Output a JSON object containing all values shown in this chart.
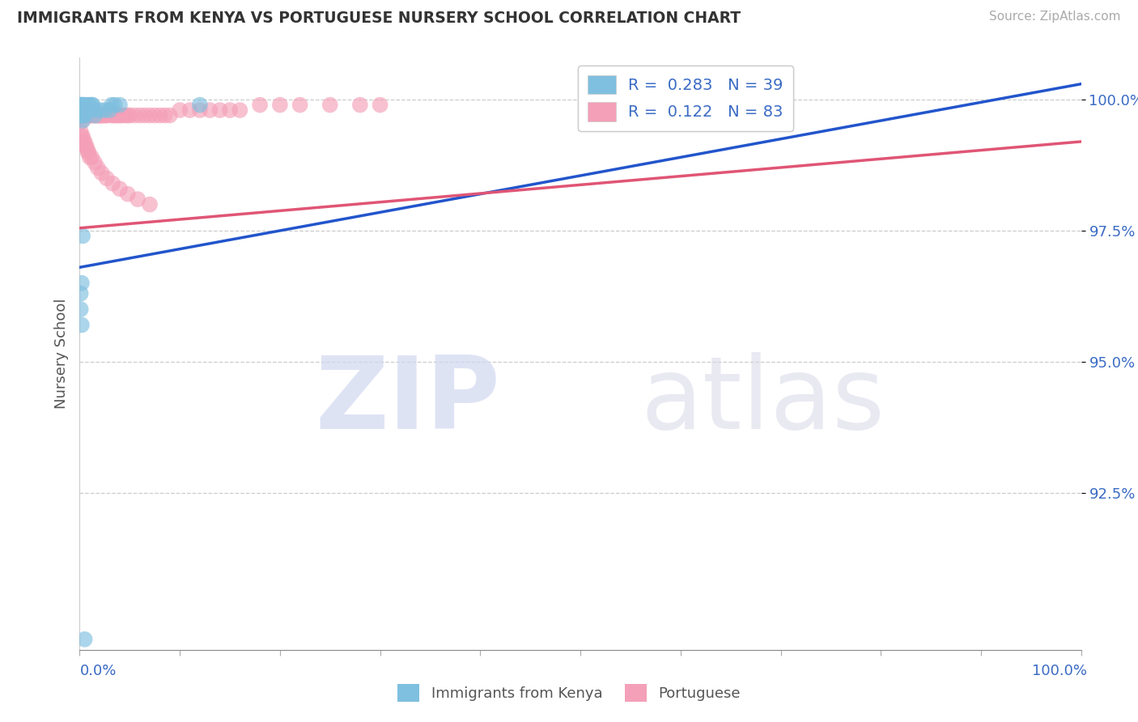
{
  "title": "IMMIGRANTS FROM KENYA VS PORTUGUESE NURSERY SCHOOL CORRELATION CHART",
  "source": "Source: ZipAtlas.com",
  "ylabel": "Nursery School",
  "ytick_labels": [
    "100.0%",
    "97.5%",
    "95.0%",
    "92.5%"
  ],
  "ytick_values": [
    1.0,
    0.975,
    0.95,
    0.925
  ],
  "xrange": [
    0.0,
    1.0
  ],
  "yrange": [
    0.895,
    1.008
  ],
  "blue_color": "#7fbfdf",
  "pink_color": "#f4a0b8",
  "blue_line_color": "#2255cc",
  "pink_line_color": "#e05575",
  "legend_blue_label": "R =  0.283   N = 39",
  "legend_pink_label": "R =  0.122   N = 83",
  "bottom_legend_blue": "Immigrants from Kenya",
  "bottom_legend_pink": "Portuguese",
  "blue_scatter_x": [
    0.0,
    0.001,
    0.001,
    0.001,
    0.002,
    0.002,
    0.002,
    0.003,
    0.003,
    0.003,
    0.003,
    0.004,
    0.004,
    0.005,
    0.005,
    0.005,
    0.006,
    0.007,
    0.008,
    0.008,
    0.009,
    0.01,
    0.012,
    0.013,
    0.015,
    0.015,
    0.02,
    0.025,
    0.03,
    0.032,
    0.035,
    0.04,
    0.003,
    0.002,
    0.001,
    0.001,
    0.002,
    0.12,
    0.005
  ],
  "blue_scatter_y": [
    0.999,
    0.999,
    0.998,
    0.997,
    0.999,
    0.998,
    0.997,
    0.999,
    0.998,
    0.997,
    0.996,
    0.999,
    0.998,
    0.999,
    0.998,
    0.997,
    0.998,
    0.998,
    0.999,
    0.998,
    0.998,
    0.999,
    0.999,
    0.999,
    0.998,
    0.997,
    0.998,
    0.998,
    0.998,
    0.999,
    0.999,
    0.999,
    0.974,
    0.965,
    0.963,
    0.96,
    0.957,
    0.999,
    0.897
  ],
  "pink_scatter_x": [
    0.0,
    0.001,
    0.001,
    0.002,
    0.002,
    0.003,
    0.003,
    0.004,
    0.005,
    0.005,
    0.006,
    0.007,
    0.008,
    0.008,
    0.009,
    0.01,
    0.01,
    0.011,
    0.012,
    0.013,
    0.015,
    0.016,
    0.017,
    0.018,
    0.019,
    0.02,
    0.021,
    0.022,
    0.023,
    0.025,
    0.026,
    0.028,
    0.03,
    0.032,
    0.034,
    0.036,
    0.038,
    0.04,
    0.042,
    0.045,
    0.048,
    0.05,
    0.055,
    0.06,
    0.065,
    0.07,
    0.075,
    0.08,
    0.085,
    0.09,
    0.1,
    0.11,
    0.12,
    0.13,
    0.14,
    0.15,
    0.16,
    0.18,
    0.2,
    0.22,
    0.25,
    0.28,
    0.3,
    0.001,
    0.002,
    0.003,
    0.004,
    0.005,
    0.006,
    0.007,
    0.008,
    0.009,
    0.01,
    0.012,
    0.015,
    0.018,
    0.022,
    0.027,
    0.033,
    0.04,
    0.048,
    0.058,
    0.07
  ],
  "pink_scatter_y": [
    0.998,
    0.998,
    0.997,
    0.998,
    0.997,
    0.997,
    0.996,
    0.998,
    0.998,
    0.997,
    0.997,
    0.997,
    0.998,
    0.997,
    0.997,
    0.998,
    0.997,
    0.997,
    0.997,
    0.997,
    0.997,
    0.997,
    0.997,
    0.997,
    0.997,
    0.997,
    0.997,
    0.997,
    0.997,
    0.997,
    0.997,
    0.997,
    0.998,
    0.997,
    0.997,
    0.997,
    0.997,
    0.997,
    0.997,
    0.997,
    0.997,
    0.997,
    0.997,
    0.997,
    0.997,
    0.997,
    0.997,
    0.997,
    0.997,
    0.997,
    0.998,
    0.998,
    0.998,
    0.998,
    0.998,
    0.998,
    0.998,
    0.999,
    0.999,
    0.999,
    0.999,
    0.999,
    0.999,
    0.994,
    0.993,
    0.993,
    0.992,
    0.992,
    0.991,
    0.991,
    0.99,
    0.99,
    0.989,
    0.989,
    0.988,
    0.987,
    0.986,
    0.985,
    0.984,
    0.983,
    0.982,
    0.981,
    0.98
  ],
  "blue_line_x": [
    0.0,
    1.0
  ],
  "blue_line_y_start": 0.968,
  "blue_line_y_end": 1.003,
  "pink_line_x": [
    0.0,
    1.0
  ],
  "pink_line_y_start": 0.9755,
  "pink_line_y_end": 0.992
}
